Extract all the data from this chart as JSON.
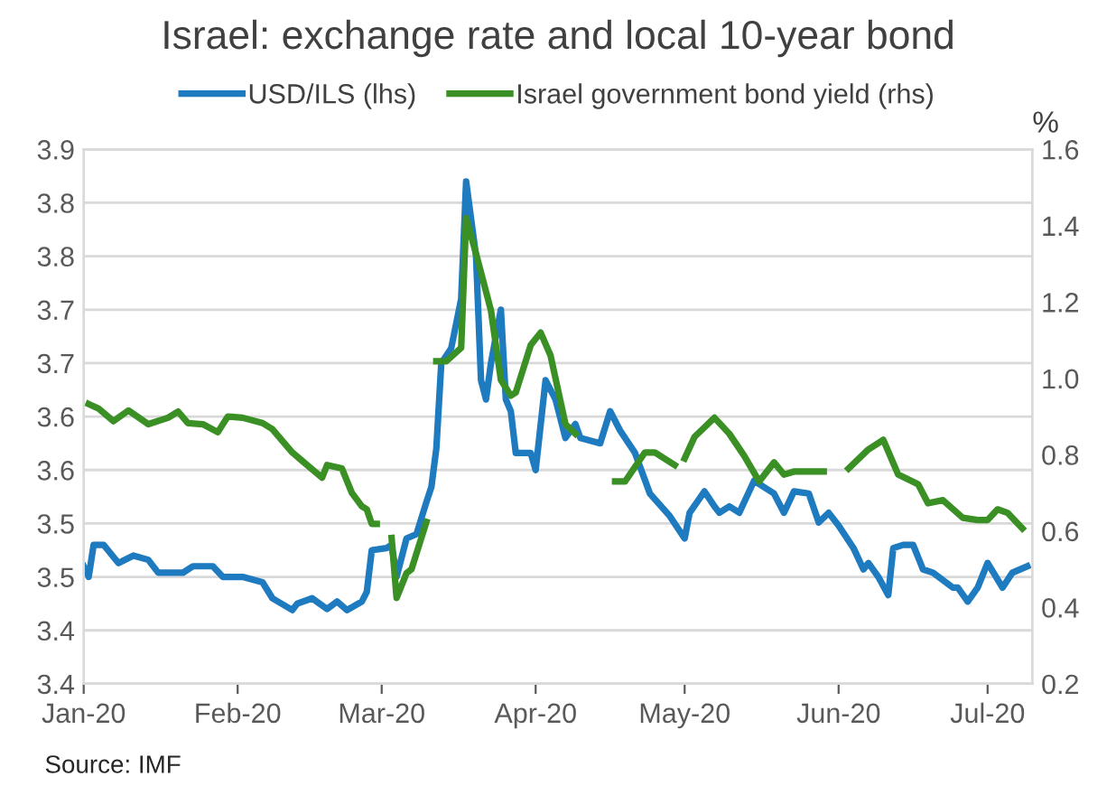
{
  "chart_data": {
    "type": "line",
    "title": "Israel: exchange rate and local 10-year bond",
    "y2label": "%",
    "annotations": [
      "Source: IMF"
    ],
    "xlim": [
      "2020-01-01",
      "2020-07-10"
    ],
    "xticks": [
      {
        "value": "2020-01-01",
        "label": "Jan-20"
      },
      {
        "value": "2020-02-01",
        "label": "Feb-20"
      },
      {
        "value": "2020-03-01",
        "label": "Mar-20"
      },
      {
        "value": "2020-04-01",
        "label": "Apr-20"
      },
      {
        "value": "2020-05-01",
        "label": "May-20"
      },
      {
        "value": "2020-06-01",
        "label": "Jun-20"
      },
      {
        "value": "2020-07-01",
        "label": "Jul-20"
      }
    ],
    "ylim": [
      3.4,
      3.9
    ],
    "yticks": [
      {
        "value": 3.4,
        "label": "3.4"
      },
      {
        "value": 3.45,
        "label": "3.4"
      },
      {
        "value": 3.5,
        "label": "3.5"
      },
      {
        "value": 3.55,
        "label": "3.5"
      },
      {
        "value": 3.6,
        "label": "3.6"
      },
      {
        "value": 3.65,
        "label": "3.6"
      },
      {
        "value": 3.7,
        "label": "3.7"
      },
      {
        "value": 3.75,
        "label": "3.7"
      },
      {
        "value": 3.8,
        "label": "3.8"
      },
      {
        "value": 3.85,
        "label": "3.8"
      },
      {
        "value": 3.9,
        "label": "3.9"
      }
    ],
    "y2lim": [
      0.2,
      1.6
    ],
    "y2ticks": [
      {
        "value": 0.2,
        "label": "0.2"
      },
      {
        "value": 0.4,
        "label": "0.4"
      },
      {
        "value": 0.6,
        "label": "0.6"
      },
      {
        "value": 0.8,
        "label": "0.8"
      },
      {
        "value": 1.0,
        "label": "1.0"
      },
      {
        "value": 1.2,
        "label": "1.2"
      },
      {
        "value": 1.4,
        "label": "1.4"
      },
      {
        "value": 1.6,
        "label": "1.6"
      }
    ],
    "grid": "y",
    "legend": "top",
    "marker": "none",
    "line_style": "solid",
    "series": [
      {
        "name": "USD/ILS (lhs)",
        "color": "#1f7bc0",
        "axis": "y",
        "x": [
          "2020-01-01",
          "2020-01-02",
          "2020-01-03",
          "2020-01-05",
          "2020-01-08",
          "2020-01-11",
          "2020-01-14",
          "2020-01-16",
          "2020-01-21",
          "2020-01-23",
          "2020-01-27",
          "2020-01-29",
          "2020-02-02",
          "2020-02-06",
          "2020-02-08",
          "2020-02-12",
          "2020-02-13",
          "2020-02-16",
          "2020-02-19",
          "2020-02-21",
          "2020-02-23",
          "2020-02-26",
          "2020-02-27",
          "2020-02-28",
          "2020-03-02",
          "2020-03-03",
          "2020-03-04",
          "2020-03-06",
          "2020-03-08",
          "2020-03-10",
          "2020-03-11",
          "2020-03-12",
          "2020-03-13",
          "2020-03-15",
          "2020-03-17",
          "2020-03-18",
          "2020-03-20",
          "2020-03-21",
          "2020-03-22",
          "2020-03-23",
          "2020-03-25",
          "2020-03-26",
          "2020-03-27",
          "2020-03-28",
          "2020-03-31",
          "2020-04-01",
          "2020-04-03",
          "2020-04-05",
          "2020-04-07",
          "2020-04-09",
          "2020-04-10",
          "2020-04-14",
          "2020-04-16",
          "2020-04-18",
          "2020-04-21",
          "2020-04-24",
          "2020-04-28",
          "2020-05-01",
          "2020-05-02",
          "2020-05-05",
          "2020-05-07",
          "2020-05-08",
          "2020-05-10",
          "2020-05-12",
          "2020-05-15",
          "2020-05-17",
          "2020-05-19",
          "2020-05-21",
          "2020-05-23",
          "2020-05-26",
          "2020-05-28",
          "2020-05-30",
          "2020-06-01",
          "2020-06-04",
          "2020-06-06",
          "2020-06-07",
          "2020-06-09",
          "2020-06-11",
          "2020-06-12",
          "2020-06-14",
          "2020-06-16",
          "2020-06-18",
          "2020-06-20",
          "2020-06-24",
          "2020-06-25",
          "2020-06-27",
          "2020-06-29",
          "2020-07-01",
          "2020-07-04",
          "2020-07-06",
          "2020-07-09"
        ],
        "values": [
          3.51,
          3.5,
          3.53,
          3.53,
          3.513,
          3.52,
          3.516,
          3.504,
          3.504,
          3.51,
          3.51,
          3.5,
          3.5,
          3.495,
          3.48,
          3.469,
          3.475,
          3.48,
          3.47,
          3.477,
          3.469,
          3.477,
          3.486,
          3.525,
          3.527,
          3.53,
          3.5,
          3.536,
          3.54,
          3.57,
          3.584,
          3.62,
          3.7,
          3.714,
          3.76,
          3.87,
          3.8,
          3.684,
          3.666,
          3.7,
          3.75,
          3.666,
          3.655,
          3.616,
          3.616,
          3.6,
          3.684,
          3.666,
          3.63,
          3.643,
          3.63,
          3.625,
          3.655,
          3.637,
          3.616,
          3.578,
          3.557,
          3.536,
          3.56,
          3.58,
          3.566,
          3.56,
          3.566,
          3.56,
          3.59,
          3.584,
          3.578,
          3.56,
          3.58,
          3.578,
          3.551,
          3.56,
          3.548,
          3.527,
          3.507,
          3.513,
          3.5,
          3.483,
          3.527,
          3.53,
          3.53,
          3.507,
          3.504,
          3.49,
          3.49,
          3.477,
          3.49,
          3.513,
          3.49,
          3.504,
          3.51
        ]
      },
      {
        "name": "Israel government bond yield (rhs)",
        "color": "#3a9024",
        "axis": "y2",
        "x": [
          "2020-01-02",
          "2020-01-04",
          "2020-01-07",
          "2020-01-10",
          "2020-01-14",
          "2020-01-18",
          "2020-01-20",
          "2020-01-22",
          "2020-01-25",
          "2020-01-28",
          "2020-01-30",
          "2020-02-02",
          "2020-02-06",
          "2020-02-08",
          "2020-02-12",
          "2020-02-14",
          "2020-02-18",
          "2020-02-19",
          "2020-02-22",
          "2020-02-24",
          "2020-02-26",
          "2020-02-27",
          "2020-02-28",
          "2020-02-29",
          "2020-03-01",
          "2020-03-03",
          "2020-03-04",
          "2020-03-06",
          "2020-03-07",
          "2020-03-10",
          "2020-03-11",
          "2020-03-12",
          "2020-03-14",
          "2020-03-17",
          "2020-03-18",
          "2020-03-20",
          "2020-03-23",
          "2020-03-25",
          "2020-03-27",
          "2020-03-28",
          "2020-03-31",
          "2020-04-02",
          "2020-04-04",
          "2020-04-07",
          "2020-04-09",
          "2020-04-13",
          "2020-04-17",
          "2020-04-19",
          "2020-04-23",
          "2020-04-25",
          "2020-04-29",
          "2020-04-30",
          "2020-05-01",
          "2020-05-03",
          "2020-05-07",
          "2020-05-10",
          "2020-05-13",
          "2020-05-16",
          "2020-05-19",
          "2020-05-21",
          "2020-05-23",
          "2020-05-26",
          "2020-05-29",
          "2020-05-31",
          "2020-06-03",
          "2020-06-07",
          "2020-06-10",
          "2020-06-13",
          "2020-06-17",
          "2020-06-19",
          "2020-06-22",
          "2020-06-26",
          "2020-06-29",
          "2020-07-01",
          "2020-07-03",
          "2020-07-05",
          "2020-07-08"
        ],
        "values": [
          0.933,
          0.921,
          0.888,
          0.916,
          0.88,
          0.897,
          0.913,
          0.883,
          0.88,
          0.859,
          0.9,
          0.897,
          0.883,
          0.867,
          0.806,
          0.784,
          0.74,
          0.773,
          0.764,
          0.7,
          0.665,
          0.657,
          0.619,
          0.619,
          null,
          0.582,
          0.425,
          0.49,
          0.5,
          0.624,
          null,
          1.045,
          1.045,
          1.08,
          1.42,
          1.327,
          1.178,
          0.996,
          0.955,
          0.963,
          1.087,
          1.12,
          1.06,
          0.88,
          0.855,
          null,
          0.73,
          0.73,
          0.806,
          0.806,
          0.773,
          null,
          0.79,
          0.847,
          0.897,
          0.855,
          0.797,
          0.73,
          0.78,
          0.748,
          0.756,
          0.756,
          0.756,
          null,
          0.764,
          0.814,
          0.839,
          0.748,
          0.723,
          0.673,
          0.681,
          0.635,
          0.629,
          0.629,
          0.657,
          0.648,
          0.607
        ]
      }
    ]
  }
}
